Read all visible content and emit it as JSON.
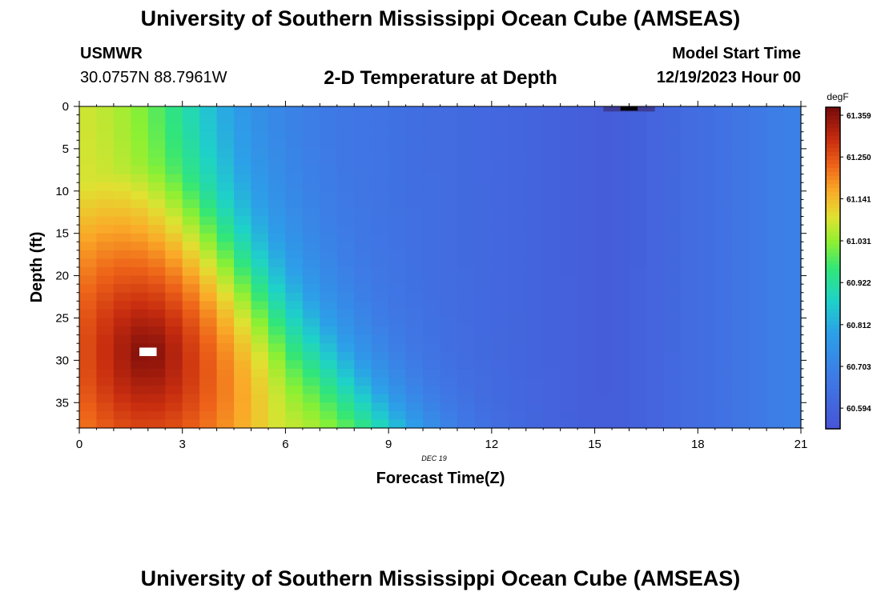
{
  "header": {
    "title": "University of Southern Mississippi Ocean Cube (AMSEAS)",
    "station_id": "USMWR",
    "coordinates": "30.0757N  88.7961W",
    "subtitle": "2-D Temperature at Depth",
    "model_start_label": "Model Start Time",
    "model_start_value": "12/19/2023 Hour 00"
  },
  "footer": {
    "title": "University of Southern Mississippi Ocean Cube (AMSEAS)"
  },
  "chart_data": {
    "type": "heatmap",
    "title": "2-D Temperature at Depth",
    "xlabel": "Forecast Time(Z)",
    "ylabel": "Depth (ft)",
    "xlim": [
      0,
      21
    ],
    "ylim": [
      0,
      38
    ],
    "xticks": [
      0,
      3,
      6,
      9,
      12,
      15,
      18,
      21
    ],
    "yticks": [
      0,
      5,
      10,
      15,
      20,
      25,
      30,
      35
    ],
    "date_label": "DEC 19",
    "colorbar": {
      "unit": "degF",
      "min": 60.54,
      "max": 61.38,
      "ticks": [
        61.359,
        61.25,
        61.141,
        61.031,
        60.922,
        60.812,
        60.703,
        60.594
      ],
      "tick_labels": [
        "61.359",
        "61.250",
        "61.141",
        "61.031",
        "60.922",
        "60.812",
        "60.703",
        "60.594"
      ]
    },
    "model": {
      "hot_spot_time": 2.0,
      "hot_spot_depth": 29,
      "hot_spot_temp": 61.38,
      "front_time_surface": 3.2,
      "front_time_bottom": 9.0,
      "front_temp": 60.9,
      "front_width_hours": 2.4,
      "cool_min_temp": 60.57,
      "cool_min_time": 15.5,
      "late_rise_temp": 60.7,
      "late_rise_time": 21
    },
    "annotations": [
      {
        "type": "missing-cell",
        "time": 2.0,
        "depth": 29
      },
      {
        "type": "cold-anomaly",
        "time": 16.0,
        "depth": 0
      }
    ]
  },
  "colors": {
    "background": "#ffffff",
    "missing": "#ffffff",
    "anomaly_core": "#000000",
    "anomaly_edge": "#3c3c96"
  }
}
